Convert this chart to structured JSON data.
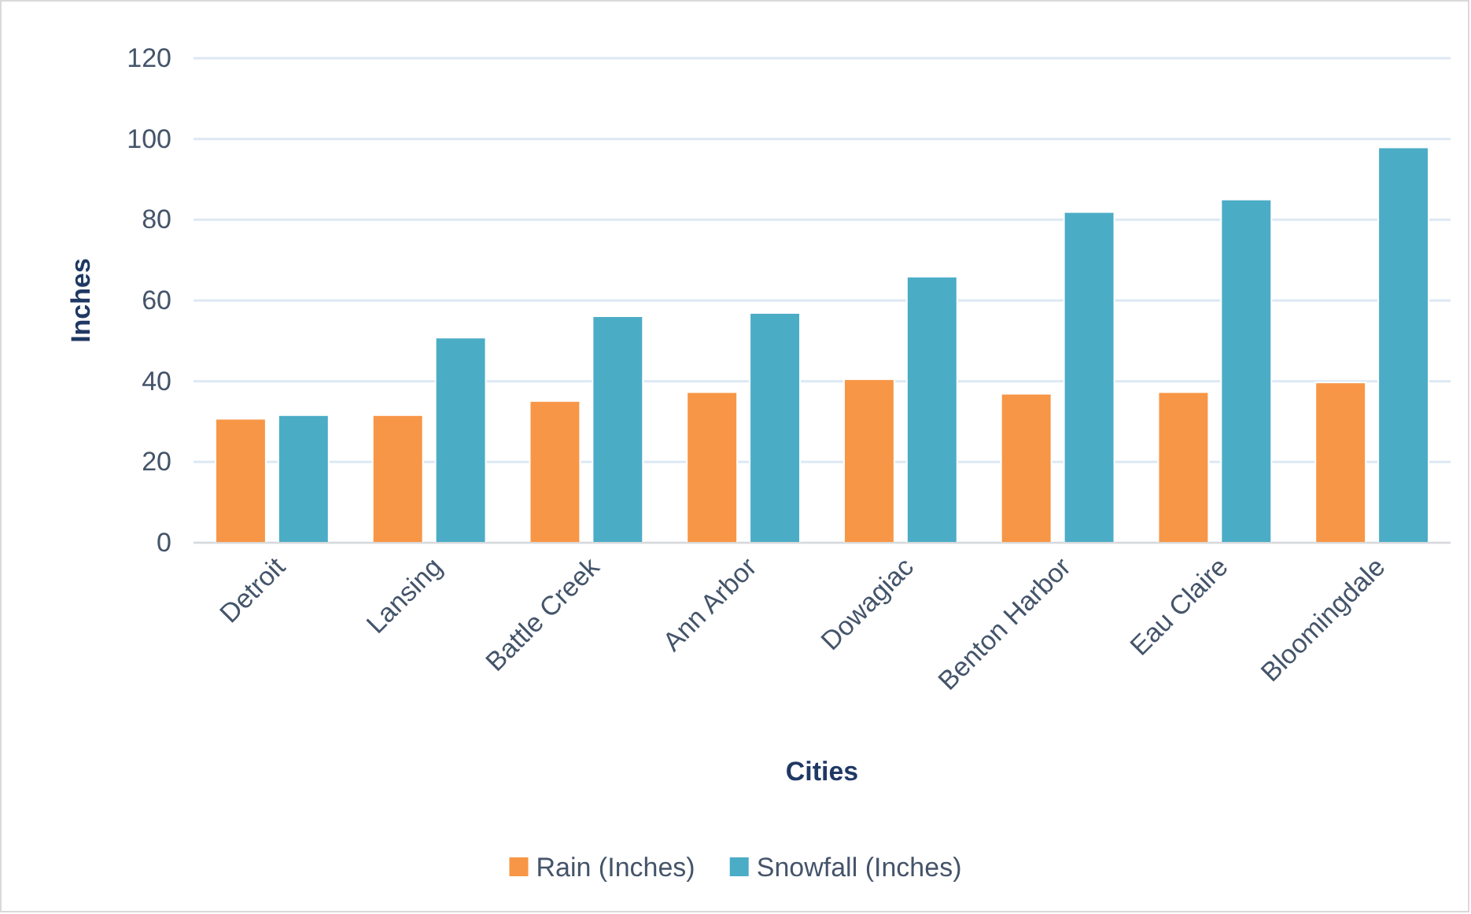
{
  "chart_data": {
    "type": "bar",
    "xlabel": "Cities",
    "ylabel": "Inches",
    "categories": [
      "Detroit",
      "Lansing",
      "Battle Creek",
      "Ann Arbor",
      "Dowagiac",
      "Benton Harbor",
      "Eau Claire",
      "Bloomingdale"
    ],
    "series": [
      {
        "name": "Rain (Inches)",
        "color": "#f79646",
        "values": [
          30.7,
          31.6,
          35.1,
          37.3,
          40.5,
          36.9,
          37.3,
          39.7
        ]
      },
      {
        "name": "Snowfall (Inches)",
        "color": "#4bacc6",
        "values": [
          31.6,
          50.8,
          56.1,
          56.9,
          65.9,
          81.9,
          85.0,
          97.9
        ]
      }
    ],
    "ylim": [
      0,
      120
    ],
    "yticks": [
      0,
      20,
      40,
      60,
      80,
      100,
      120
    ],
    "grid": "y",
    "legend": "bottom"
  }
}
